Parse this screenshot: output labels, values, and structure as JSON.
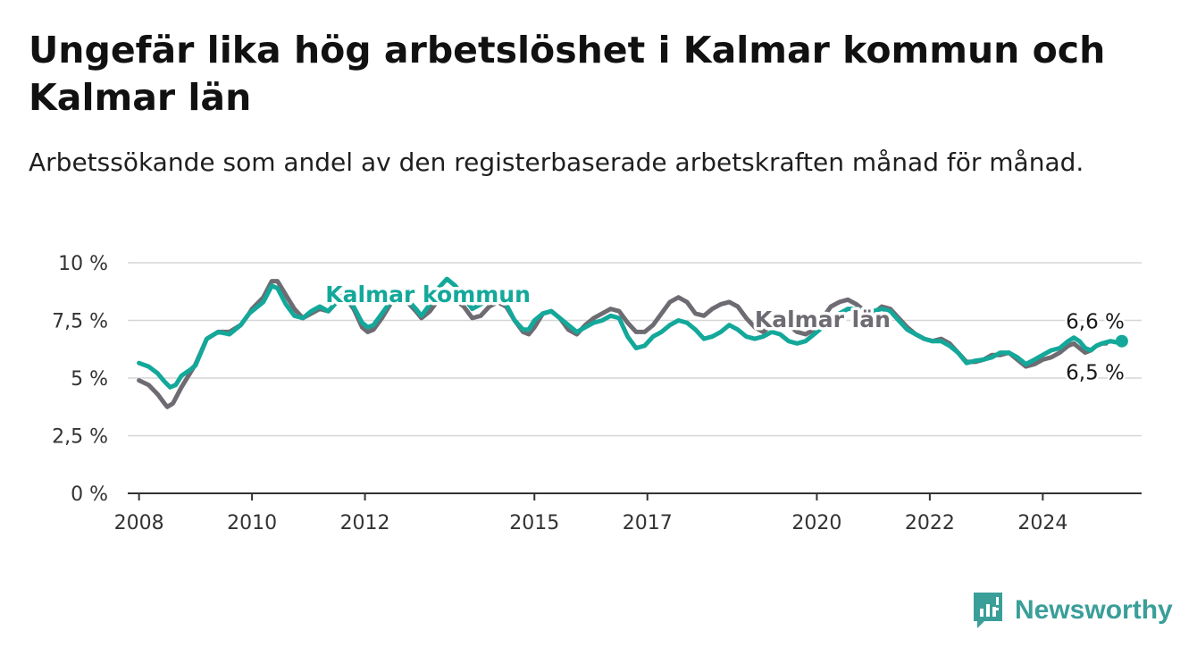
{
  "header": {
    "title": "Ungefär lika hög arbetslöshet i Kalmar kommun och Kalmar län",
    "subtitle": "Arbetssökande som andel av den registerbaserade arbetskraften månad för månad."
  },
  "brand": {
    "name": "Newsworthy",
    "color": "#3a9e99",
    "icon": "newsworthy-logo-icon"
  },
  "colors": {
    "kommun": "#13a89a",
    "lan": "#6e6b72",
    "grid": "#d6d6d6",
    "axis": "#333333"
  },
  "chart_data": {
    "type": "line",
    "title": "Ungefär lika hög arbetslöshet i Kalmar kommun och Kalmar län",
    "subtitle": "Arbetssökande som andel av den registerbaserade arbetskraften månad för månad.",
    "xlabel": "",
    "ylabel": "",
    "xlim": [
      2007.8,
      2025.75
    ],
    "ylim": [
      0,
      10
    ],
    "y_ticks": [
      {
        "value": 0,
        "label": "0 %"
      },
      {
        "value": 2.5,
        "label": "2,5 %"
      },
      {
        "value": 5,
        "label": "5 %"
      },
      {
        "value": 7.5,
        "label": "7,5 %"
      },
      {
        "value": 10,
        "label": "10 %"
      }
    ],
    "x_ticks": [
      {
        "value": 2008,
        "label": "2008"
      },
      {
        "value": 2010,
        "label": "2010"
      },
      {
        "value": 2012,
        "label": "2012"
      },
      {
        "value": 2015,
        "label": "2015"
      },
      {
        "value": 2017,
        "label": "2017"
      },
      {
        "value": 2020,
        "label": "2020"
      },
      {
        "value": 2022,
        "label": "2022"
      },
      {
        "value": 2024,
        "label": "2024"
      }
    ],
    "grid": true,
    "legend": "inline labels",
    "series": [
      {
        "name": "Kalmar län",
        "color": "#6e6b72",
        "label_pos": [
          2018.9,
          7.2
        ],
        "end_label": "6,5 %",
        "points": [
          [
            2008.0,
            4.9
          ],
          [
            2008.17,
            4.7
          ],
          [
            2008.33,
            4.3
          ],
          [
            2008.45,
            3.9
          ],
          [
            2008.5,
            3.75
          ],
          [
            2008.6,
            3.9
          ],
          [
            2008.75,
            4.6
          ],
          [
            2008.9,
            5.2
          ],
          [
            2009.0,
            5.6
          ],
          [
            2009.2,
            6.7
          ],
          [
            2009.4,
            7.0
          ],
          [
            2009.6,
            7.0
          ],
          [
            2009.8,
            7.3
          ],
          [
            2009.95,
            7.8
          ],
          [
            2010.0,
            8.0
          ],
          [
            2010.2,
            8.5
          ],
          [
            2010.35,
            9.2
          ],
          [
            2010.45,
            9.2
          ],
          [
            2010.6,
            8.6
          ],
          [
            2010.75,
            8.0
          ],
          [
            2010.9,
            7.6
          ],
          [
            2011.05,
            7.8
          ],
          [
            2011.2,
            8.0
          ],
          [
            2011.35,
            7.9
          ],
          [
            2011.5,
            8.3
          ],
          [
            2011.62,
            8.6
          ],
          [
            2011.8,
            8.0
          ],
          [
            2011.95,
            7.2
          ],
          [
            2012.05,
            7.0
          ],
          [
            2012.15,
            7.1
          ],
          [
            2012.3,
            7.6
          ],
          [
            2012.45,
            8.2
          ],
          [
            2012.6,
            8.5
          ],
          [
            2012.75,
            8.3
          ],
          [
            2012.9,
            7.9
          ],
          [
            2013.0,
            7.6
          ],
          [
            2013.15,
            7.9
          ],
          [
            2013.3,
            8.4
          ],
          [
            2013.45,
            8.6
          ],
          [
            2013.6,
            8.4
          ],
          [
            2013.75,
            8.1
          ],
          [
            2013.9,
            7.6
          ],
          [
            2014.05,
            7.7
          ],
          [
            2014.2,
            8.1
          ],
          [
            2014.35,
            8.3
          ],
          [
            2014.5,
            8.1
          ],
          [
            2014.65,
            7.5
          ],
          [
            2014.8,
            7.0
          ],
          [
            2014.9,
            6.9
          ],
          [
            2015.0,
            7.2
          ],
          [
            2015.15,
            7.8
          ],
          [
            2015.3,
            7.9
          ],
          [
            2015.45,
            7.6
          ],
          [
            2015.6,
            7.1
          ],
          [
            2015.75,
            6.9
          ],
          [
            2015.9,
            7.3
          ],
          [
            2016.05,
            7.6
          ],
          [
            2016.2,
            7.8
          ],
          [
            2016.35,
            8.0
          ],
          [
            2016.5,
            7.9
          ],
          [
            2016.65,
            7.4
          ],
          [
            2016.8,
            7.0
          ],
          [
            2016.95,
            7.0
          ],
          [
            2017.1,
            7.3
          ],
          [
            2017.25,
            7.8
          ],
          [
            2017.4,
            8.3
          ],
          [
            2017.55,
            8.5
          ],
          [
            2017.7,
            8.3
          ],
          [
            2017.85,
            7.8
          ],
          [
            2018.0,
            7.7
          ],
          [
            2018.15,
            8.0
          ],
          [
            2018.3,
            8.2
          ],
          [
            2018.45,
            8.3
          ],
          [
            2018.6,
            8.1
          ],
          [
            2018.75,
            7.6
          ],
          [
            2018.9,
            7.2
          ],
          [
            2019.05,
            7.0
          ],
          [
            2019.2,
            7.3
          ],
          [
            2019.35,
            7.5
          ],
          [
            2019.5,
            7.3
          ],
          [
            2019.65,
            7.0
          ],
          [
            2019.8,
            6.9
          ],
          [
            2019.95,
            7.1
          ],
          [
            2020.1,
            7.6
          ],
          [
            2020.25,
            8.1
          ],
          [
            2020.4,
            8.3
          ],
          [
            2020.55,
            8.4
          ],
          [
            2020.7,
            8.2
          ],
          [
            2020.85,
            7.9
          ],
          [
            2021.0,
            7.8
          ],
          [
            2021.15,
            8.1
          ],
          [
            2021.3,
            8.0
          ],
          [
            2021.45,
            7.6
          ],
          [
            2021.6,
            7.2
          ],
          [
            2021.75,
            6.9
          ],
          [
            2021.9,
            6.7
          ],
          [
            2022.05,
            6.6
          ],
          [
            2022.2,
            6.7
          ],
          [
            2022.35,
            6.5
          ],
          [
            2022.5,
            6.1
          ],
          [
            2022.65,
            5.7
          ],
          [
            2022.8,
            5.7
          ],
          [
            2022.95,
            5.8
          ],
          [
            2023.1,
            6.0
          ],
          [
            2023.25,
            6.0
          ],
          [
            2023.4,
            6.1
          ],
          [
            2023.55,
            5.8
          ],
          [
            2023.7,
            5.5
          ],
          [
            2023.85,
            5.6
          ],
          [
            2024.0,
            5.8
          ],
          [
            2024.15,
            5.9
          ],
          [
            2024.3,
            6.1
          ],
          [
            2024.45,
            6.4
          ],
          [
            2024.55,
            6.5
          ],
          [
            2024.65,
            6.3
          ],
          [
            2024.75,
            6.1
          ],
          [
            2024.85,
            6.2
          ],
          [
            2024.95,
            6.4
          ],
          [
            2025.05,
            6.5
          ],
          [
            2025.12,
            6.5
          ]
        ]
      },
      {
        "name": "Kalmar kommun",
        "color": "#13a89a",
        "label_pos": [
          2011.3,
          8.3
        ],
        "end_label": "6,6 %",
        "points": [
          [
            2008.0,
            5.65
          ],
          [
            2008.17,
            5.5
          ],
          [
            2008.33,
            5.2
          ],
          [
            2008.45,
            4.85
          ],
          [
            2008.55,
            4.6
          ],
          [
            2008.65,
            4.7
          ],
          [
            2008.75,
            5.1
          ],
          [
            2008.9,
            5.35
          ],
          [
            2009.0,
            5.55
          ],
          [
            2009.2,
            6.7
          ],
          [
            2009.4,
            7.0
          ],
          [
            2009.6,
            6.9
          ],
          [
            2009.8,
            7.3
          ],
          [
            2009.95,
            7.8
          ],
          [
            2010.0,
            7.9
          ],
          [
            2010.2,
            8.3
          ],
          [
            2010.35,
            9.0
          ],
          [
            2010.45,
            8.9
          ],
          [
            2010.6,
            8.2
          ],
          [
            2010.75,
            7.7
          ],
          [
            2010.9,
            7.6
          ],
          [
            2011.05,
            7.9
          ],
          [
            2011.2,
            8.1
          ],
          [
            2011.35,
            7.9
          ],
          [
            2011.5,
            8.3
          ],
          [
            2011.62,
            8.6
          ],
          [
            2011.8,
            8.1
          ],
          [
            2011.95,
            7.4
          ],
          [
            2012.05,
            7.2
          ],
          [
            2012.15,
            7.3
          ],
          [
            2012.3,
            7.8
          ],
          [
            2012.45,
            8.3
          ],
          [
            2012.6,
            8.6
          ],
          [
            2012.75,
            8.4
          ],
          [
            2012.9,
            8.0
          ],
          [
            2013.0,
            7.7
          ],
          [
            2013.15,
            8.2
          ],
          [
            2013.3,
            8.9
          ],
          [
            2013.45,
            9.3
          ],
          [
            2013.6,
            9.0
          ],
          [
            2013.75,
            8.5
          ],
          [
            2013.9,
            8.0
          ],
          [
            2014.05,
            8.2
          ],
          [
            2014.2,
            8.5
          ],
          [
            2014.35,
            8.6
          ],
          [
            2014.5,
            8.2
          ],
          [
            2014.65,
            7.5
          ],
          [
            2014.8,
            7.1
          ],
          [
            2014.9,
            7.1
          ],
          [
            2015.0,
            7.5
          ],
          [
            2015.15,
            7.8
          ],
          [
            2015.3,
            7.9
          ],
          [
            2015.45,
            7.6
          ],
          [
            2015.6,
            7.3
          ],
          [
            2015.75,
            7.0
          ],
          [
            2015.9,
            7.2
          ],
          [
            2016.05,
            7.4
          ],
          [
            2016.2,
            7.5
          ],
          [
            2016.35,
            7.7
          ],
          [
            2016.5,
            7.6
          ],
          [
            2016.65,
            6.8
          ],
          [
            2016.8,
            6.3
          ],
          [
            2016.95,
            6.4
          ],
          [
            2017.1,
            6.8
          ],
          [
            2017.25,
            7.0
          ],
          [
            2017.4,
            7.3
          ],
          [
            2017.55,
            7.5
          ],
          [
            2017.7,
            7.4
          ],
          [
            2017.85,
            7.1
          ],
          [
            2018.0,
            6.7
          ],
          [
            2018.15,
            6.8
          ],
          [
            2018.3,
            7.0
          ],
          [
            2018.45,
            7.3
          ],
          [
            2018.6,
            7.1
          ],
          [
            2018.75,
            6.8
          ],
          [
            2018.9,
            6.7
          ],
          [
            2019.05,
            6.8
          ],
          [
            2019.2,
            7.0
          ],
          [
            2019.35,
            6.9
          ],
          [
            2019.5,
            6.6
          ],
          [
            2019.65,
            6.5
          ],
          [
            2019.8,
            6.6
          ],
          [
            2019.95,
            6.9
          ],
          [
            2020.1,
            7.2
          ],
          [
            2020.25,
            7.5
          ],
          [
            2020.4,
            7.8
          ],
          [
            2020.55,
            8.0
          ],
          [
            2020.7,
            8.0
          ],
          [
            2020.85,
            7.9
          ],
          [
            2021.0,
            7.9
          ],
          [
            2021.15,
            8.0
          ],
          [
            2021.3,
            7.9
          ],
          [
            2021.45,
            7.5
          ],
          [
            2021.6,
            7.1
          ],
          [
            2021.75,
            6.9
          ],
          [
            2021.9,
            6.7
          ],
          [
            2022.05,
            6.6
          ],
          [
            2022.2,
            6.6
          ],
          [
            2022.35,
            6.4
          ],
          [
            2022.5,
            6.1
          ],
          [
            2022.65,
            5.65
          ],
          [
            2022.8,
            5.75
          ],
          [
            2022.95,
            5.8
          ],
          [
            2023.1,
            5.9
          ],
          [
            2023.25,
            6.1
          ],
          [
            2023.4,
            6.1
          ],
          [
            2023.55,
            5.9
          ],
          [
            2023.7,
            5.6
          ],
          [
            2023.85,
            5.8
          ],
          [
            2024.0,
            6.0
          ],
          [
            2024.15,
            6.2
          ],
          [
            2024.3,
            6.3
          ],
          [
            2024.45,
            6.6
          ],
          [
            2024.55,
            6.75
          ],
          [
            2024.65,
            6.6
          ],
          [
            2024.75,
            6.3
          ],
          [
            2024.85,
            6.2
          ],
          [
            2024.95,
            6.4
          ],
          [
            2025.05,
            6.5
          ],
          [
            2025.2,
            6.6
          ],
          [
            2025.3,
            6.55
          ],
          [
            2025.4,
            6.6
          ]
        ]
      }
    ]
  }
}
